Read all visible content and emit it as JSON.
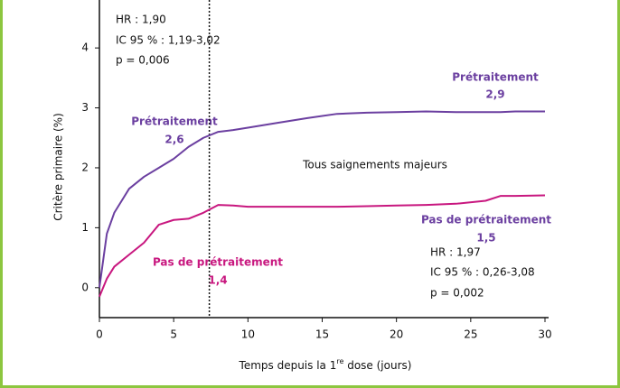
{
  "chart_data": {
    "type": "line",
    "y_label": "Critère primaire (%)",
    "x_label": [
      "Temps depuis la 1",
      "re",
      " dose (jours)"
    ],
    "x": [
      0,
      0.5,
      1,
      2,
      3,
      4,
      5,
      6,
      7,
      8,
      9,
      10,
      12,
      14,
      16,
      18,
      20,
      22,
      24,
      26,
      27,
      28,
      30
    ],
    "series": [
      {
        "color": "#6b3fa0",
        "values": [
          0,
          0.9,
          1.25,
          1.65,
          1.85,
          2.0,
          2.15,
          2.35,
          2.5,
          2.6,
          2.63,
          2.67,
          2.75,
          2.83,
          2.9,
          2.92,
          2.93,
          2.94,
          2.93,
          2.93,
          2.93,
          2.94,
          2.94
        ]
      },
      {
        "color": "#c8177f",
        "values": [
          -0.15,
          0.15,
          0.35,
          0.55,
          0.75,
          1.05,
          1.13,
          1.15,
          1.25,
          1.38,
          1.37,
          1.35,
          1.35,
          1.35,
          1.35,
          1.36,
          1.37,
          1.38,
          1.4,
          1.45,
          1.53,
          1.53,
          1.54
        ]
      }
    ],
    "xlim": [
      0,
      30
    ],
    "xticks": [
      0,
      5,
      10,
      15,
      20,
      25,
      30
    ],
    "ylim": [
      -0.5,
      4.8
    ],
    "yticks": [
      0,
      1,
      2,
      3,
      4
    ],
    "vline": 7.4,
    "annotations": {
      "hr_pre": [
        "HR : 1,90",
        "IC 95 % : 1,19-3,02",
        "p = 0,006"
      ],
      "pre_early": [
        "Prétraitement",
        "2,6"
      ],
      "pre_late": [
        "Prétraitement",
        "2,9"
      ],
      "center": "Tous saignements majeurs",
      "nopre_early": [
        "Pas de prétraitement",
        "1,4"
      ],
      "nopre_late": [
        "Pas de prétraitement",
        "1,5"
      ],
      "hr_nopre": [
        "HR : 1,97",
        "IC 95 % : 0,26-3,08",
        "p = 0,002"
      ]
    }
  }
}
